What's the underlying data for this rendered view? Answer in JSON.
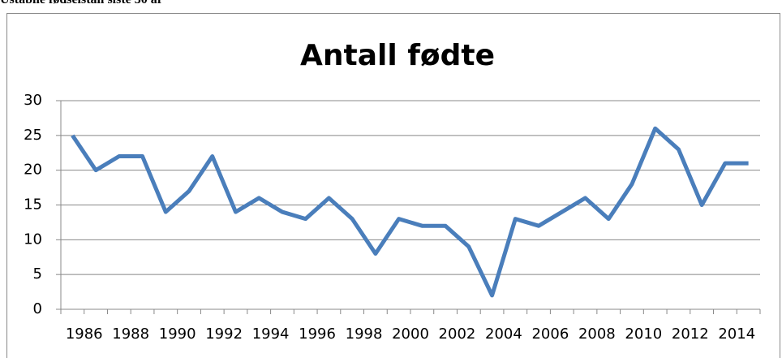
{
  "header": "Ustabile fødselstall siste 30 år",
  "chart_data": {
    "type": "line",
    "title": "Antall fødte",
    "categories": [
      "1986",
      null,
      "1988",
      null,
      "1990",
      null,
      "1992",
      null,
      "1994",
      null,
      "1996",
      null,
      "1998",
      null,
      "2000",
      null,
      "2002",
      null,
      "2004",
      null,
      "2006",
      null,
      "2008",
      null,
      "2010",
      null,
      "2012",
      null,
      "2014",
      null
    ],
    "values": [
      25,
      20,
      22,
      22,
      14,
      17,
      22,
      14,
      16,
      14,
      13,
      16,
      13,
      8,
      13,
      12,
      12,
      9,
      2,
      13,
      12,
      14,
      16,
      13,
      18,
      26,
      23,
      15,
      21,
      21
    ],
    "color": "#4a7ebb",
    "ylim": [
      0,
      30
    ],
    "yticks": [
      0,
      5,
      10,
      15,
      20,
      25,
      30
    ],
    "grid": true
  }
}
